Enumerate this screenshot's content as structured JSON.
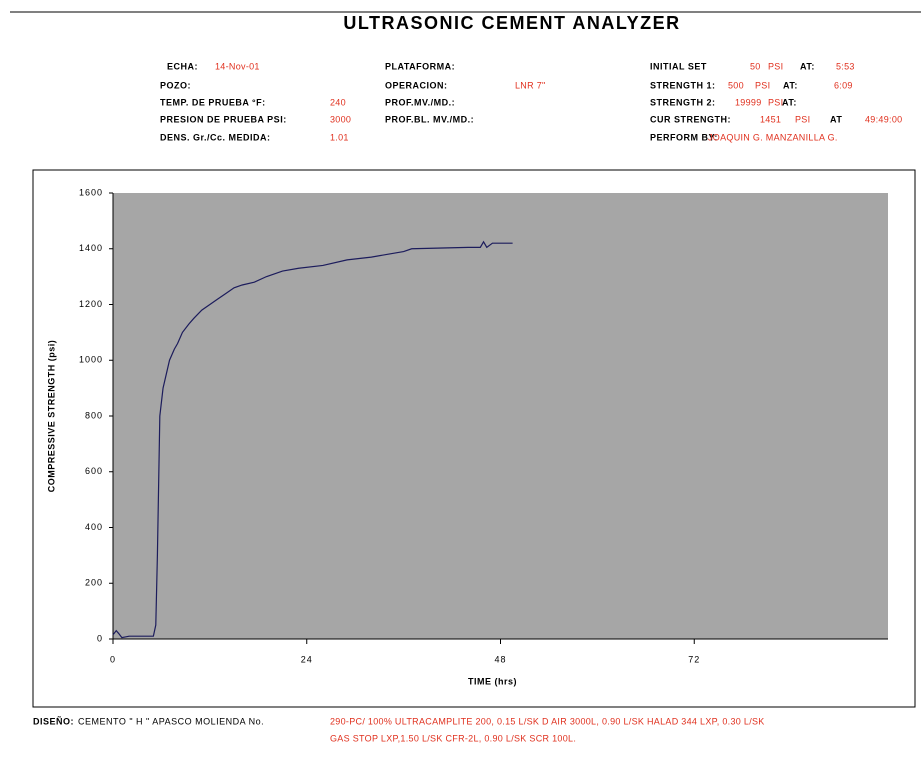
{
  "header": {
    "title": "ULTRASONIC CEMENT ANALYZER",
    "left": [
      {
        "label": "ECHA:",
        "value": "14-Nov-01"
      },
      {
        "label": "POZO:"
      },
      {
        "label": "TEMP. DE PRUEBA °F:",
        "value": "240"
      },
      {
        "label": "PRESION DE PRUEBA PSI:",
        "value": "3000"
      },
      {
        "label": "DENS. Gr./Cc. MEDIDA:",
        "value": "1.01"
      }
    ],
    "middle": [
      {
        "label": "PLATAFORMA:"
      },
      {
        "label": "OPERACION:",
        "value": "LNR 7\""
      },
      {
        "label": "PROF.MV./MD.:"
      },
      {
        "label": "PROF.BL. MV./MD.:"
      }
    ],
    "right": [
      {
        "label": "INITIAL SET",
        "parts": [
          "50",
          "PSI",
          "AT:",
          "5:53"
        ]
      },
      {
        "label": "STRENGTH 1:",
        "parts": [
          "500",
          "PSI",
          "AT:",
          "6:09"
        ]
      },
      {
        "label": "STRENGTH 2:",
        "parts": [
          "19999",
          "PSI",
          "AT:"
        ]
      },
      {
        "label": "CUR STRENGTH:",
        "parts": [
          "1451",
          "PSI",
          "AT",
          "49:49:00"
        ]
      },
      {
        "label": "PERFORM BY:",
        "parts": [
          "JOAQUIN G. MANZANILLA G."
        ]
      }
    ]
  },
  "chart_data": {
    "type": "line",
    "xlabel": "TIME (hrs)",
    "ylabel": "COMPRESSIVE STRENGTH (psi)",
    "xlim": [
      0,
      96
    ],
    "xticks": [
      0,
      24,
      48,
      72
    ],
    "ylim": [
      0,
      1600
    ],
    "yticks": [
      0,
      200,
      400,
      600,
      800,
      1000,
      1200,
      1400,
      1600
    ],
    "plot_background": "#a6a6a6",
    "x": [
      0,
      0.4,
      0.7,
      1.1,
      2,
      3,
      4,
      5,
      5.3,
      5.5,
      5.8,
      6.2,
      6.6,
      7,
      7.6,
      8,
      8.6,
      9.4,
      10,
      11,
      12,
      13,
      14,
      15,
      16,
      17.5,
      19,
      21,
      23,
      26,
      29,
      32,
      34,
      36,
      37,
      44,
      45.5,
      45.9,
      46.3,
      47,
      49.5
    ],
    "series": [
      {
        "name": "Compressive strength",
        "color": "#1c1c5c",
        "values": [
          15,
          30,
          20,
          5,
          10,
          10,
          10,
          10,
          50,
          300,
          800,
          900,
          950,
          1000,
          1040,
          1060,
          1100,
          1130,
          1150,
          1180,
          1200,
          1220,
          1240,
          1260,
          1270,
          1280,
          1300,
          1320,
          1330,
          1340,
          1360,
          1370,
          1380,
          1390,
          1400,
          1405,
          1405,
          1425,
          1405,
          1420,
          1420
        ]
      }
    ]
  },
  "footer": {
    "label": "DISEÑO:",
    "text": "CEMENTO \" H \" APASCO MOLIENDA No.",
    "lines": [
      "290-PC/ 100% ULTRACAMPLITE 200, 0.15 L/SK D AIR 3000L, 0.90 L/SK HALAD 344 LXP, 0.30 L/SK",
      "GAS STOP LXP,1.50 L/SK CFR-2L, 0.90 L/SK SCR 100L."
    ]
  }
}
